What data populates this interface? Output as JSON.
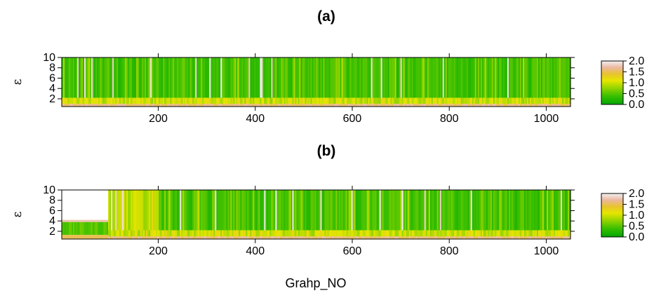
{
  "chart_data": [
    {
      "type": "heatmap",
      "title": "(a)",
      "xlabel": "",
      "ylabel": "ε",
      "xlim": [
        1,
        1050
      ],
      "ylim": [
        0.5,
        10
      ],
      "x_ticks": [
        "200",
        "400",
        "600",
        "800",
        "1000"
      ],
      "y_ticks": [
        "2",
        "4",
        "6",
        "8",
        "10"
      ],
      "colorbar": {
        "min": 0.0,
        "max": 2.0,
        "ticks": [
          "0.0",
          "0.5",
          "1.0",
          "1.5",
          "2.0"
        ]
      },
      "dominant_value_above_eps_2": 0.4,
      "low_eps_band_values": {
        "eps_0_5_to_1": 1.6,
        "eps_1_to_2": 1.0
      },
      "regions": []
    },
    {
      "type": "heatmap",
      "title": "(b)",
      "xlabel": "Grahp_NO",
      "ylabel": "ε",
      "xlim": [
        1,
        1050
      ],
      "ylim": [
        0.5,
        10
      ],
      "x_ticks": [
        "200",
        "400",
        "600",
        "800",
        "1000"
      ],
      "y_ticks": [
        "2",
        "4",
        "6",
        "8",
        "10"
      ],
      "colorbar": {
        "min": 0.0,
        "max": 2.0,
        "ticks": [
          "0.0",
          "0.5",
          "1.0",
          "1.5",
          "2.0"
        ]
      },
      "dominant_value_above_eps_2": 0.4,
      "low_eps_band_values": {
        "eps_0_5_to_1": 1.6,
        "eps_1_to_2": 1.0
      },
      "regions": [
        {
          "x_range": [
            1,
            97
          ],
          "eps_range": [
            0.5,
            3.8
          ],
          "value": 0.5,
          "note": "no data above ε≈3.8"
        },
        {
          "x_range": [
            97,
            200
          ],
          "eps_range": [
            2,
            10
          ],
          "value": 0.9
        }
      ]
    }
  ],
  "colors": {
    "green": "#22c000",
    "yellow_green": "#a8d400",
    "yellow": "#e0d000",
    "tan": "#e8b98a",
    "pink_white": "#f2e4e4"
  }
}
